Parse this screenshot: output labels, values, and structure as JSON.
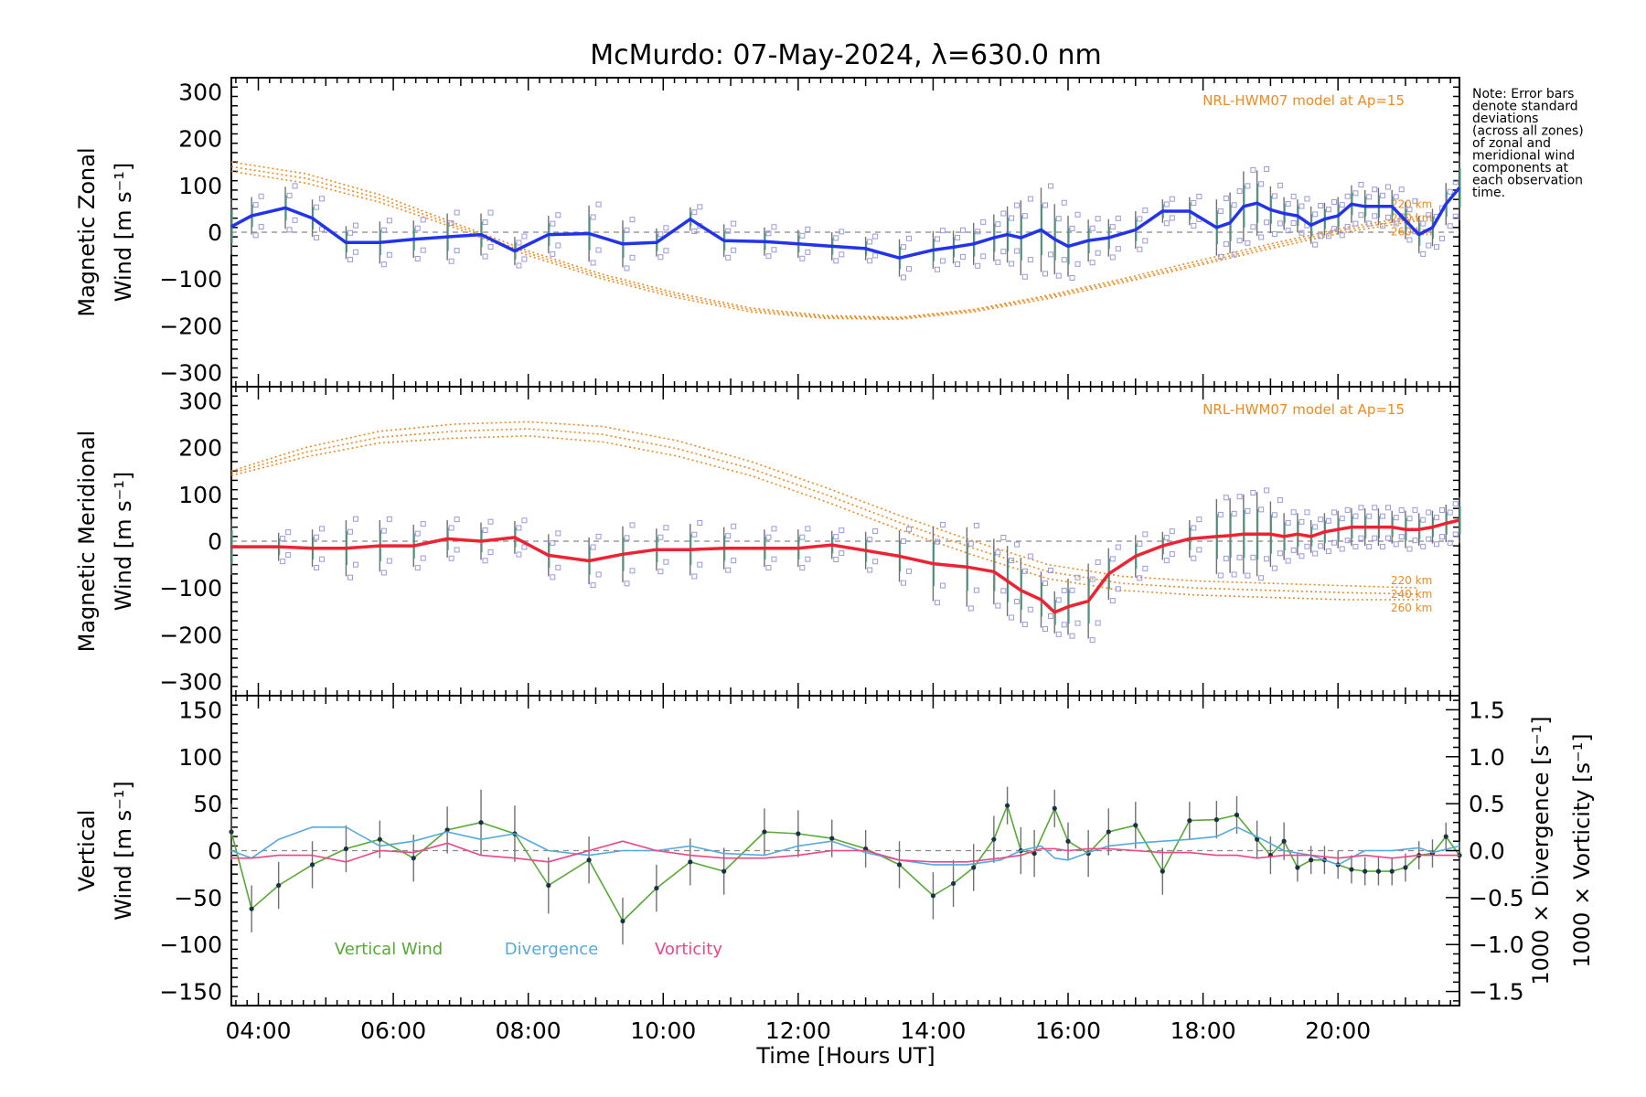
{
  "chart_data": {
    "title": "McMurdo: 07-May-2024, λ=630.0 nm",
    "xlabel": "Time [Hours UT]",
    "x_ticks": [
      "04:00",
      "06:00",
      "08:00",
      "10:00",
      "12:00",
      "14:00",
      "16:00",
      "18:00",
      "20:00"
    ],
    "xlim": [
      3.6,
      21.8
    ],
    "note": [
      "Note: Error bars",
      "denote standard",
      "deviations",
      "(across all zones)",
      "of zonal and",
      "meridional wind",
      "components at",
      "each observation",
      "time."
    ],
    "colors": {
      "zonal": "#2233ee",
      "meridional": "#ee2233",
      "model": "#f08a1c",
      "vertical": "#55aa33",
      "divergence": "#55aadd",
      "vorticity": "#ee4488",
      "scatter": "#9999dd",
      "error_bar": "#707070",
      "zero_line": "#888888"
    },
    "panels": [
      {
        "type": "line",
        "ylabel": [
          "Magnetic Zonal",
          "Wind [m s⁻¹]"
        ],
        "ylim": [
          -330,
          330
        ],
        "y_ticks": [
          300,
          200,
          100,
          0,
          -100,
          -200,
          -300
        ],
        "model_label": "NRL-HWM07 model at Ap=15",
        "model_levels": [
          "220 km",
          "240 km",
          "260 km"
        ],
        "series": [
          {
            "name": "Zonal wind",
            "x": [
              3.6,
              3.9,
              4.4,
              4.8,
              5.3,
              5.8,
              6.3,
              6.8,
              7.3,
              7.8,
              8.3,
              8.9,
              9.4,
              9.9,
              10.4,
              10.9,
              11.5,
              12.0,
              12.5,
              13.0,
              13.5,
              14.0,
              14.3,
              14.6,
              14.9,
              15.1,
              15.3,
              15.6,
              15.8,
              16.0,
              16.3,
              16.6,
              17.0,
              17.4,
              17.8,
              18.2,
              18.4,
              18.6,
              18.8,
              19.0,
              19.2,
              19.4,
              19.6,
              19.8,
              20.0,
              20.2,
              20.4,
              20.6,
              20.8,
              21.0,
              21.2,
              21.4,
              21.6,
              21.8
            ],
            "y": [
              12,
              35,
              52,
              30,
              -22,
              -22,
              -15,
              -10,
              -5,
              -40,
              -5,
              -3,
              -25,
              -22,
              28,
              -18,
              -20,
              -25,
              -30,
              -35,
              -55,
              -38,
              -32,
              -25,
              -12,
              -5,
              -12,
              5,
              -15,
              -30,
              -18,
              -12,
              5,
              45,
              45,
              10,
              20,
              55,
              62,
              48,
              40,
              35,
              15,
              28,
              35,
              60,
              55,
              55,
              55,
              25,
              -5,
              10,
              60,
              95
            ],
            "error": [
              60,
              40,
              45,
              40,
              35,
              45,
              40,
              50,
              45,
              30,
              40,
              60,
              50,
              30,
              25,
              35,
              30,
              30,
              30,
              25,
              40,
              40,
              35,
              45,
              50,
              60,
              80,
              90,
              75,
              65,
              45,
              40,
              40,
              25,
              30,
              60,
              65,
              75,
              70,
              50,
              35,
              35,
              40,
              35,
              40,
              40,
              35,
              40,
              35,
              40,
              40,
              40,
              45,
              70
            ]
          }
        ],
        "model": {
          "x": [
            3.6,
            4.7,
            5.8,
            6.9,
            8.0,
            9.1,
            10.2,
            11.3,
            12.4,
            13.5,
            14.6,
            15.7,
            16.8,
            17.9,
            19.0,
            20.1,
            21.2
          ],
          "y220": [
            150,
            125,
            80,
            20,
            -40,
            -90,
            -130,
            -162,
            -178,
            -182,
            -165,
            -135,
            -100,
            -62,
            -25,
            10,
            35
          ],
          "y240": [
            140,
            115,
            72,
            15,
            -45,
            -95,
            -135,
            -166,
            -181,
            -184,
            -167,
            -138,
            -104,
            -68,
            -30,
            5,
            30
          ],
          "y260": [
            130,
            105,
            64,
            10,
            -50,
            -100,
            -140,
            -170,
            -184,
            -186,
            -170,
            -142,
            -108,
            -72,
            -35,
            0,
            25
          ]
        }
      },
      {
        "type": "line",
        "ylabel": [
          "Magnetic Meridional",
          "Wind [m s⁻¹]"
        ],
        "ylim": [
          -330,
          330
        ],
        "y_ticks": [
          300,
          200,
          100,
          0,
          -100,
          -200,
          -300
        ],
        "model_label": "NRL-HWM07 model at Ap=15",
        "model_levels": [
          "220 km",
          "240 km",
          "260 km"
        ],
        "series": [
          {
            "name": "Meridional wind",
            "x": [
              3.6,
              4.3,
              4.8,
              5.3,
              5.8,
              6.3,
              6.8,
              7.3,
              7.8,
              8.3,
              8.9,
              9.4,
              9.9,
              10.4,
              10.9,
              11.5,
              12.0,
              12.5,
              13.0,
              13.5,
              14.0,
              14.5,
              14.9,
              15.1,
              15.3,
              15.6,
              15.8,
              16.0,
              16.3,
              16.6,
              17.0,
              17.4,
              17.8,
              18.2,
              18.4,
              18.6,
              18.8,
              19.0,
              19.2,
              19.4,
              19.6,
              19.8,
              20.0,
              20.2,
              20.4,
              20.6,
              20.8,
              21.0,
              21.2,
              21.4,
              21.6,
              21.8
            ],
            "y": [
              -12,
              -12,
              -15,
              -15,
              -10,
              -10,
              5,
              0,
              8,
              -30,
              -42,
              -28,
              -18,
              -18,
              -15,
              -15,
              -15,
              -8,
              -20,
              -32,
              -48,
              -55,
              -65,
              -85,
              -105,
              -125,
              -152,
              -140,
              -128,
              -70,
              -32,
              -10,
              5,
              10,
              12,
              15,
              15,
              15,
              10,
              15,
              10,
              20,
              25,
              30,
              30,
              30,
              30,
              25,
              25,
              30,
              38,
              45
            ],
            "error": [
              60,
              30,
              40,
              60,
              55,
              45,
              40,
              40,
              35,
              45,
              50,
              60,
              45,
              55,
              45,
              40,
              40,
              30,
              40,
              55,
              80,
              85,
              70,
              75,
              70,
              60,
              45,
              60,
              80,
              55,
              45,
              30,
              40,
              80,
              80,
              85,
              90,
              70,
              50,
              45,
              35,
              40,
              40,
              40,
              40,
              40,
              35,
              40,
              35,
              35,
              40,
              50
            ]
          }
        ],
        "model": {
          "x": [
            3.6,
            4.7,
            5.8,
            6.9,
            8.0,
            9.1,
            10.2,
            11.3,
            12.4,
            13.5,
            14.6,
            15.7,
            16.8,
            17.9,
            19.0,
            20.1,
            21.2
          ],
          "y220": [
            150,
            200,
            235,
            250,
            255,
            245,
            215,
            170,
            115,
            55,
            0,
            -50,
            -75,
            -85,
            -90,
            -95,
            -100
          ],
          "y240": [
            145,
            190,
            222,
            235,
            240,
            228,
            198,
            155,
            100,
            40,
            -15,
            -65,
            -90,
            -100,
            -105,
            -110,
            -113
          ],
          "y260": [
            140,
            180,
            210,
            220,
            225,
            212,
            182,
            140,
            85,
            25,
            -30,
            -80,
            -105,
            -115,
            -120,
            -125,
            -125
          ]
        }
      },
      {
        "type": "line",
        "ylabel": [
          "Vertical",
          "Wind [m s⁻¹]"
        ],
        "ylim": [
          -165,
          165
        ],
        "y_ticks": [
          150,
          100,
          50,
          0,
          -50,
          -100,
          -150
        ],
        "right_ylim": [
          -1.65,
          1.65
        ],
        "right_ticks": [
          "1.5",
          "1.0",
          "0.5",
          "0.0",
          "−0.5",
          "−1.0",
          "−1.5"
        ],
        "right_labels": [
          "1000 × Divergence [s⁻¹]",
          "1000 × Vorticity [s⁻¹]"
        ],
        "legend": [
          "Vertical Wind",
          "Divergence",
          "Vorticity"
        ],
        "series": [
          {
            "name": "Vertical Wind",
            "x": [
              3.6,
              3.9,
              4.3,
              4.8,
              5.3,
              5.8,
              6.3,
              6.8,
              7.3,
              7.8,
              8.3,
              8.9,
              9.4,
              9.9,
              10.4,
              10.9,
              11.5,
              12.0,
              12.5,
              13.0,
              13.5,
              14.0,
              14.3,
              14.6,
              14.9,
              15.1,
              15.3,
              15.5,
              15.8,
              16.0,
              16.3,
              16.6,
              17.0,
              17.4,
              17.8,
              18.2,
              18.5,
              18.8,
              19.0,
              19.2,
              19.4,
              19.6,
              19.8,
              20.0,
              20.2,
              20.4,
              20.6,
              20.8,
              21.0,
              21.2,
              21.4,
              21.6,
              21.8
            ],
            "y": [
              20,
              -62,
              -37,
              -15,
              2,
              12,
              -8,
              22,
              30,
              18,
              -37,
              -10,
              -75,
              -40,
              -12,
              -22,
              20,
              18,
              13,
              2,
              -15,
              -48,
              -35,
              -18,
              12,
              48,
              0,
              -3,
              45,
              10,
              -3,
              20,
              27,
              -22,
              32,
              33,
              38,
              12,
              -5,
              10,
              -18,
              -10,
              -10,
              -15,
              -20,
              -22,
              -22,
              -22,
              -18,
              -5,
              -3,
              15,
              -5
            ],
            "error": [
              30,
              25,
              25,
              25,
              25,
              20,
              25,
              25,
              35,
              30,
              30,
              25,
              25,
              25,
              25,
              25,
              25,
              25,
              20,
              20,
              25,
              25,
              25,
              25,
              25,
              20,
              25,
              25,
              20,
              20,
              25,
              25,
              25,
              25,
              20,
              20,
              20,
              20,
              20,
              20,
              15,
              15,
              15,
              15,
              15,
              15,
              15,
              15,
              15,
              15,
              15,
              15,
              15
            ]
          },
          {
            "name": "Divergence",
            "axis": "right",
            "x": [
              3.6,
              3.9,
              4.3,
              4.8,
              5.3,
              5.8,
              6.3,
              6.8,
              7.3,
              7.8,
              8.3,
              8.9,
              9.4,
              9.9,
              10.4,
              10.9,
              11.5,
              12.0,
              12.5,
              13.0,
              13.5,
              14.0,
              14.5,
              15.0,
              15.3,
              15.6,
              15.8,
              16.0,
              16.3,
              16.6,
              17.0,
              17.4,
              17.8,
              18.2,
              18.5,
              18.8,
              19.2,
              19.6,
              20.0,
              20.4,
              20.8,
              21.2,
              21.4,
              21.8
            ],
            "y": [
              0.0,
              -0.08,
              0.12,
              0.25,
              0.25,
              0.05,
              0.1,
              0.2,
              0.12,
              0.18,
              0.0,
              -0.05,
              0.0,
              0.0,
              0.05,
              -0.03,
              -0.05,
              0.05,
              0.1,
              -0.02,
              -0.1,
              -0.15,
              -0.15,
              -0.1,
              0.0,
              0.05,
              -0.08,
              -0.1,
              -0.02,
              0.05,
              0.08,
              0.1,
              0.12,
              0.15,
              0.25,
              0.15,
              0.0,
              -0.05,
              -0.15,
              0.0,
              0.0,
              0.03,
              -0.02,
              0.05
            ]
          },
          {
            "name": "Vorticity",
            "axis": "right",
            "x": [
              3.6,
              3.9,
              4.3,
              4.8,
              5.3,
              5.8,
              6.3,
              6.8,
              7.3,
              7.8,
              8.3,
              8.9,
              9.4,
              9.9,
              10.4,
              10.9,
              11.5,
              12.0,
              12.5,
              13.0,
              13.5,
              14.0,
              14.5,
              15.0,
              15.3,
              15.6,
              15.8,
              16.0,
              16.3,
              16.6,
              17.0,
              17.4,
              17.8,
              18.2,
              18.5,
              18.8,
              19.2,
              19.6,
              20.0,
              20.4,
              20.8,
              21.2,
              21.4,
              21.8
            ],
            "y": [
              -0.08,
              -0.08,
              -0.05,
              -0.05,
              -0.12,
              0.0,
              -0.02,
              0.08,
              -0.05,
              -0.08,
              -0.12,
              0.0,
              0.1,
              0.0,
              -0.05,
              -0.08,
              -0.08,
              -0.05,
              0.0,
              0.0,
              -0.1,
              -0.12,
              -0.12,
              -0.08,
              -0.05,
              0.02,
              0.02,
              0.0,
              0.02,
              0.02,
              0.0,
              -0.02,
              -0.02,
              -0.05,
              -0.05,
              -0.08,
              -0.05,
              -0.05,
              -0.08,
              -0.05,
              -0.08,
              -0.05,
              -0.05,
              -0.05
            ]
          }
        ]
      }
    ]
  }
}
